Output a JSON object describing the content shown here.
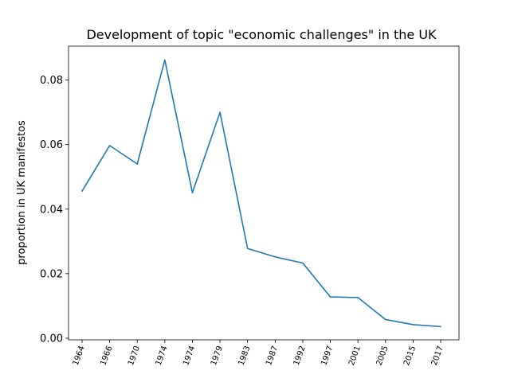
{
  "chart_data": {
    "type": "line",
    "title": "Development of topic \"economic challenges\" in the UK",
    "xlabel": "",
    "ylabel": "proportion in UK manifestos",
    "categories": [
      "1964",
      "1966",
      "1970",
      "1974",
      "1974",
      "1979",
      "1983",
      "1987",
      "1992",
      "1997",
      "2001",
      "2005",
      "2015",
      "2017"
    ],
    "series": [
      {
        "values": [
          0.0456,
          0.0597,
          0.054,
          0.0862,
          0.0451,
          0.07,
          0.0278,
          0.0252,
          0.0233,
          0.0128,
          0.0126,
          0.0058,
          0.0042,
          0.0036
        ],
        "color": "#1f77b4"
      }
    ],
    "yticks": [
      "0.00",
      "0.02",
      "0.04",
      "0.06",
      "0.08"
    ],
    "ylim": [
      -0.0005,
      0.0905
    ],
    "grid": false,
    "legend": "none"
  }
}
